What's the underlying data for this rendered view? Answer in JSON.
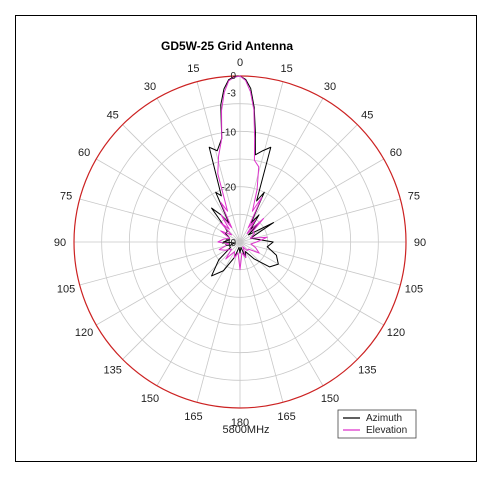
{
  "chart_data": {
    "type": "polar",
    "title": "GD5W-25 Grid Antenna",
    "frequency_label": "5800MHz",
    "angle_ticks": [
      "0",
      "15",
      "30",
      "45",
      "60",
      "75",
      "90",
      "105",
      "120",
      "135",
      "150",
      "165",
      "180",
      "165",
      "150",
      "135",
      "120",
      "105",
      "90",
      "75",
      "60",
      "45",
      "30",
      "15"
    ],
    "radial_ticks": [
      "0",
      "-3",
      "-10",
      "-20",
      "-30"
    ],
    "radial_range_db": [
      -30,
      0
    ],
    "grid": true,
    "legend_position": "bottom-right",
    "colors": {
      "outer_ring": "#cc2222",
      "grid": "#c8c8c8"
    },
    "series": [
      {
        "name": "Azimuth",
        "color": "#000000",
        "angles_deg": [
          0,
          2,
          4,
          6,
          8,
          10,
          14,
          18,
          22,
          26,
          30,
          35,
          40,
          45,
          50,
          60,
          70,
          80,
          90,
          100,
          110,
          120,
          130,
          140,
          150,
          160,
          170,
          180,
          190,
          200,
          210,
          220,
          230,
          240,
          250,
          260,
          270,
          280,
          290,
          300,
          310,
          315,
          320,
          325,
          330,
          334,
          338,
          342,
          346,
          350,
          352,
          354,
          356,
          358,
          360
        ],
        "gain_db": [
          0,
          -0.6,
          -2.2,
          -5.5,
          -10,
          -14,
          -13,
          -12,
          -22,
          -20,
          -26,
          -24,
          -27,
          -25,
          -28,
          -23,
          -28,
          -27,
          -24,
          -25,
          -23,
          -22,
          -23,
          -26,
          -28,
          -27,
          -29,
          -28,
          -29,
          -27,
          -24,
          -22,
          -25,
          -28,
          -28,
          -29,
          -27,
          -28,
          -28,
          -27,
          -27,
          -26,
          -22,
          -24,
          -26,
          -20,
          -21,
          -12,
          -13,
          -11,
          -5,
          -2.2,
          -0.6,
          -0.1,
          0
        ]
      },
      {
        "name": "Elevation",
        "color": "#dd33cc",
        "angles_deg": [
          0,
          2,
          4,
          6,
          8,
          10,
          14,
          18,
          22,
          26,
          30,
          35,
          40,
          45,
          50,
          60,
          70,
          80,
          90,
          100,
          110,
          120,
          130,
          140,
          150,
          160,
          170,
          180,
          190,
          200,
          210,
          220,
          230,
          240,
          250,
          260,
          270,
          280,
          290,
          300,
          310,
          315,
          320,
          325,
          330,
          334,
          338,
          342,
          346,
          350,
          352,
          354,
          356,
          358,
          360
        ],
        "gain_db": [
          0,
          -0.8,
          -2.8,
          -6,
          -11,
          -15,
          -16,
          -20,
          -24,
          -21,
          -27,
          -25,
          -28,
          -24,
          -27,
          -27,
          -28,
          -25,
          -27,
          -28,
          -27,
          -26,
          -28,
          -28,
          -29,
          -27,
          -28,
          -25,
          -28,
          -27,
          -28,
          -26,
          -28,
          -27,
          -26,
          -28,
          -26,
          -27,
          -28,
          -26,
          -28,
          -25,
          -27,
          -24,
          -27,
          -22,
          -24,
          -17,
          -14,
          -11,
          -6,
          -2.8,
          -0.8,
          -0.2,
          0
        ]
      }
    ]
  }
}
